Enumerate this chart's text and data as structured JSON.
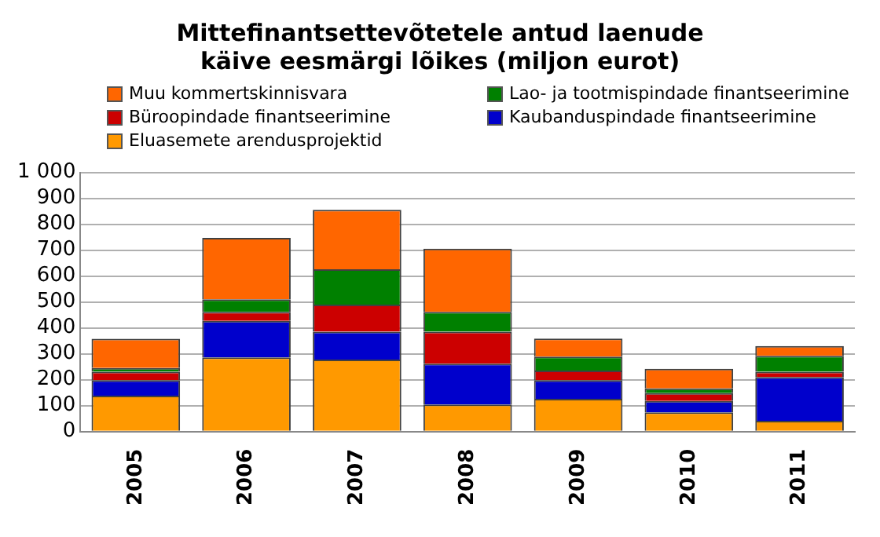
{
  "chart_data": {
    "type": "bar",
    "title": "Mittefinantsettevõtetele antud laenude käive eesmärgi lõikes (miljon eurot)",
    "stacked": true,
    "legend": "top",
    "grid": "y",
    "categories": [
      "2005",
      "2006",
      "2007",
      "2008",
      "2009",
      "2010",
      "2011"
    ],
    "series": [
      {
        "name": "Eluasemete arendusprojektid",
        "color": "#ff9900",
        "values": [
          138,
          286,
          278,
          104,
          126,
          74,
          41
        ]
      },
      {
        "name": "Kaubanduspindade finantseerimine",
        "color": "#0000cc",
        "values": [
          60,
          141,
          107,
          158,
          72,
          44,
          169
        ]
      },
      {
        "name": "Büroopindade finantseerimine",
        "color": "#cc0000",
        "values": [
          33,
          35,
          105,
          123,
          37,
          30,
          21
        ]
      },
      {
        "name": "Lao- ja tootmispindade  finantseerimine",
        "color": "#008000",
        "values": [
          14,
          48,
          136,
          77,
          54,
          18,
          61
        ]
      },
      {
        "name": "Muu kommertskinnisvara",
        "color": "#ff6600",
        "values": [
          113,
          237,
          230,
          244,
          70,
          76,
          38
        ]
      }
    ],
    "ylim": [
      0,
      1000
    ],
    "yticks": [
      0,
      100,
      200,
      300,
      400,
      500,
      600,
      700,
      800,
      900,
      {
        "value": 1000,
        "label": "1 000"
      }
    ]
  }
}
